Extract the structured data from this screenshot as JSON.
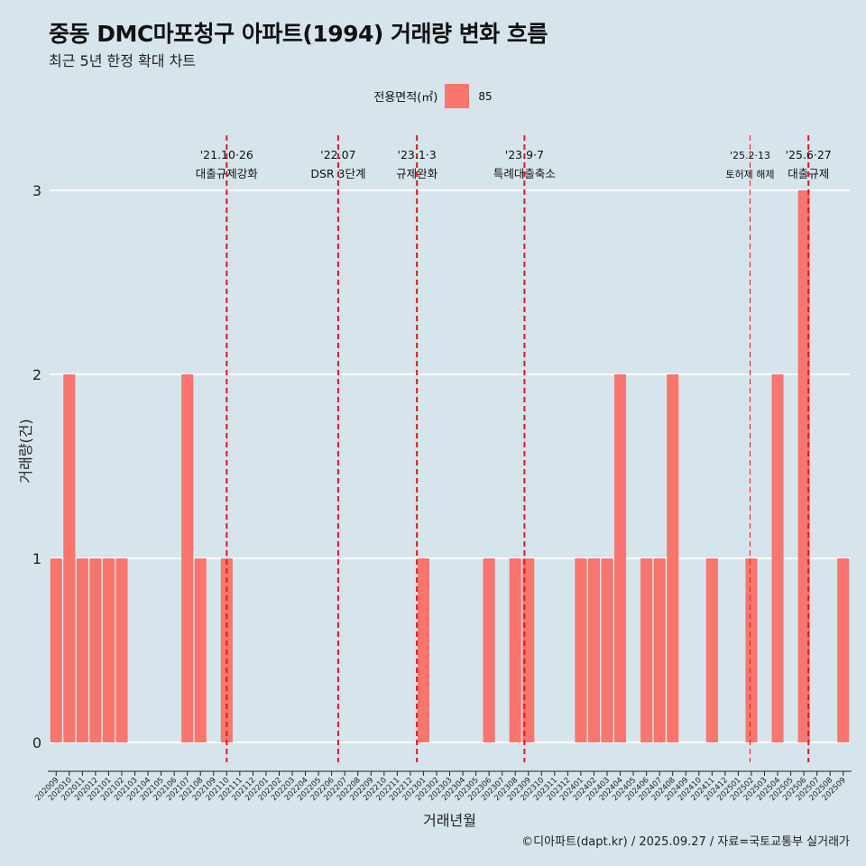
{
  "title": "중동 DMC마포청구 아파트(1994) 거래량 변화 흐름",
  "subtitle": "최근 5년 한정 확대 차트",
  "legend": {
    "title": "전용면적(㎡)",
    "label": "85"
  },
  "credit": "©디아파트(dapt.kr) / 2025.09.27 / 자료=국토교통부 실거래가",
  "colors": {
    "bar": "#f8766d",
    "event_line": "#e8141b",
    "background": "#d6e4ec",
    "grid": "#ffffff"
  },
  "chart_data": {
    "type": "bar",
    "title": "중동 DMC마포청구 아파트(1994) 거래량 변화 흐름",
    "xlabel": "거래년월",
    "ylabel": "거래량(건)",
    "ylim": [
      0,
      3
    ],
    "yticks": [
      0,
      1,
      2,
      3
    ],
    "categories": [
      "202009",
      "202010",
      "202011",
      "202012",
      "202101",
      "202102",
      "202103",
      "202104",
      "202105",
      "202106",
      "202107",
      "202108",
      "202109",
      "202110",
      "202111",
      "202112",
      "202201",
      "202202",
      "202203",
      "202204",
      "202205",
      "202206",
      "202207",
      "202208",
      "202209",
      "202210",
      "202211",
      "202212",
      "202301",
      "202302",
      "202303",
      "202304",
      "202305",
      "202306",
      "202307",
      "202308",
      "202309",
      "202310",
      "202311",
      "202312",
      "202401",
      "202402",
      "202403",
      "202404",
      "202405",
      "202406",
      "202407",
      "202408",
      "202409",
      "202410",
      "202411",
      "202412",
      "202501",
      "202502",
      "202503",
      "202504",
      "202505",
      "202506",
      "202507",
      "202508",
      "202509"
    ],
    "series": [
      {
        "name": "85",
        "values": [
          1,
          2,
          1,
          1,
          1,
          1,
          0,
          0,
          0,
          0,
          2,
          1,
          0,
          1,
          0,
          0,
          0,
          0,
          0,
          0,
          0,
          0,
          0,
          0,
          0,
          0,
          0,
          0,
          1,
          0,
          0,
          0,
          0,
          1,
          0,
          1,
          1,
          0,
          0,
          0,
          1,
          1,
          1,
          2,
          0,
          1,
          1,
          2,
          0,
          0,
          1,
          0,
          0,
          1,
          0,
          2,
          0,
          3,
          0,
          0,
          1
        ]
      }
    ],
    "events": [
      {
        "date": "'21.10·26",
        "label": "대출규제강화",
        "month": "202110",
        "offset": 0.5,
        "style": "bold"
      },
      {
        "date": "'22.07",
        "label": "DSR 3단계",
        "month": "202207",
        "offset": 0.0,
        "style": "bold"
      },
      {
        "date": "'23.1·3",
        "label": "규제완화",
        "month": "202301",
        "offset": 0.0,
        "style": "bold"
      },
      {
        "date": "'23.9·7",
        "label": "특례대출축소",
        "month": "202309",
        "offset": 0.2,
        "style": "bold"
      },
      {
        "date": "'25.2·13",
        "label": "토허제 해제",
        "month": "202502",
        "offset": 0.4,
        "style": "thin"
      },
      {
        "date": "'25.6·27",
        "label": "대출규제",
        "month": "202506",
        "offset": 0.85,
        "style": "bold"
      }
    ]
  }
}
